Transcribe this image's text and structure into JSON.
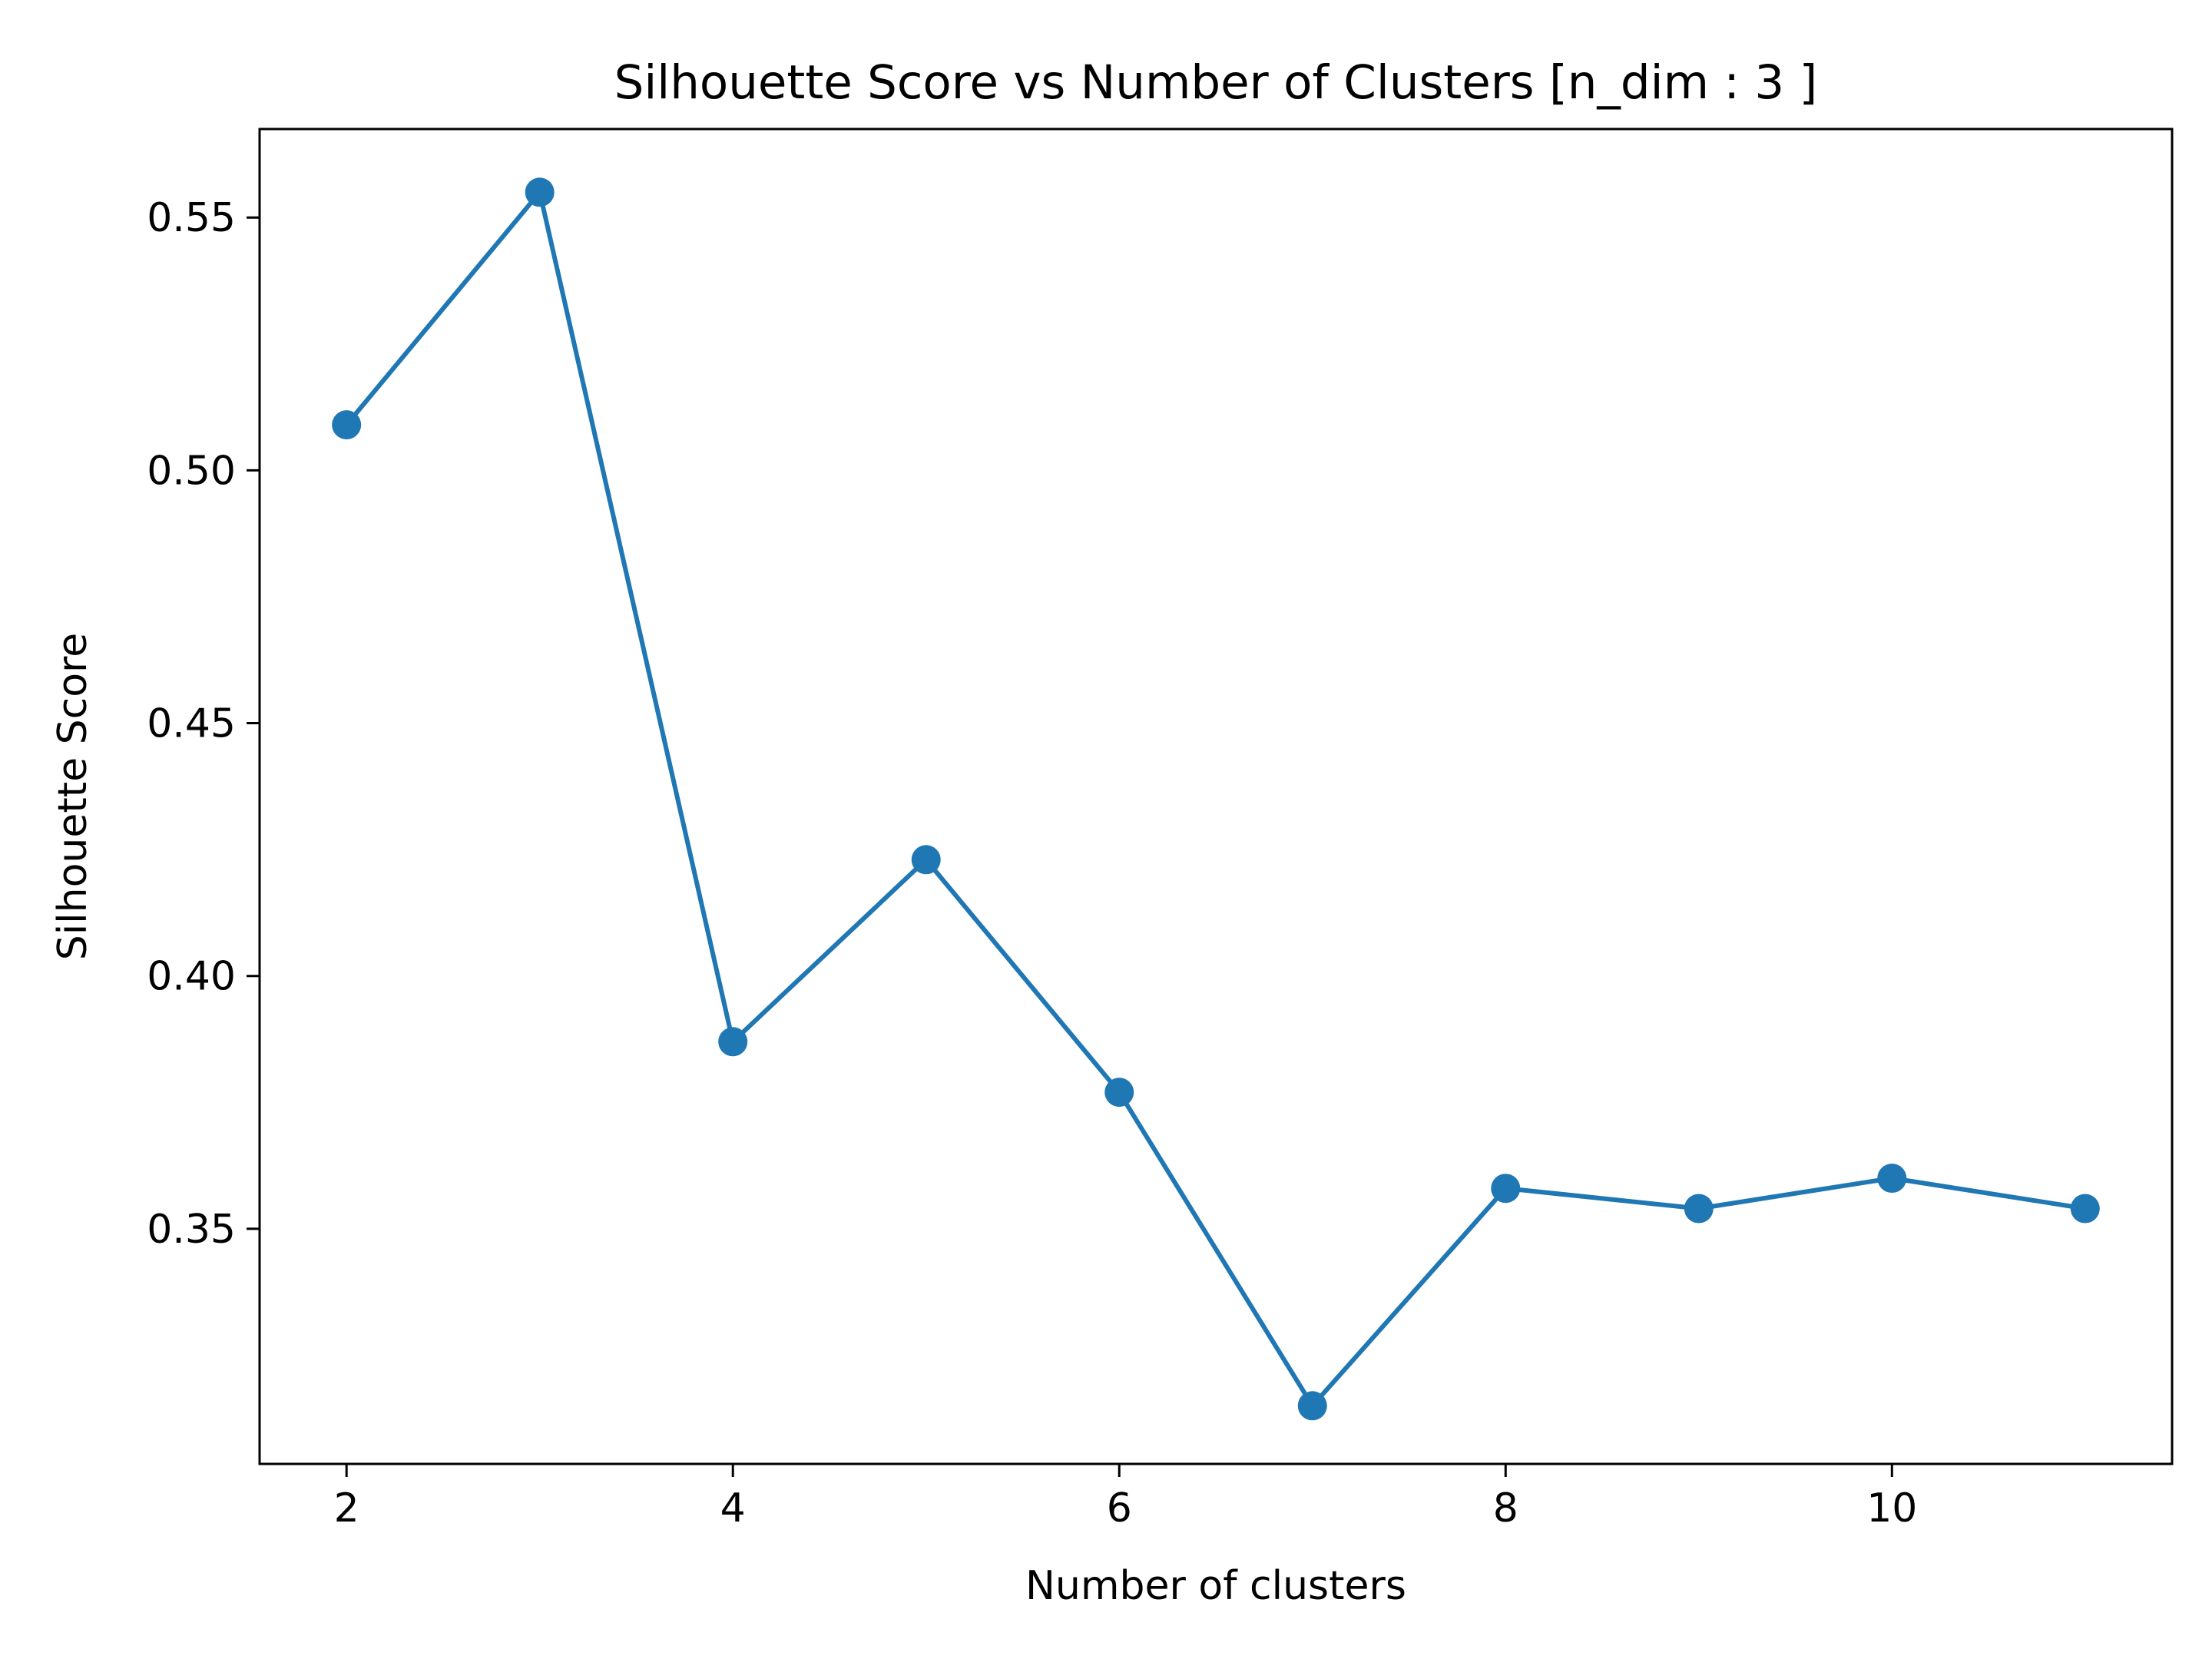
{
  "chart_data": {
    "type": "line",
    "title": "Silhouette Score vs Number of Clusters [n_dim : 3 ]",
    "xlabel": "Number of clusters",
    "ylabel": "Silhouette Score",
    "xlim": [
      1.55,
      11.45
    ],
    "ylim": [
      0.3035,
      0.5675
    ],
    "x_ticks": [
      2,
      4,
      6,
      8,
      10
    ],
    "y_ticks": [
      0.35,
      0.4,
      0.45,
      0.5,
      0.55
    ],
    "x_tick_labels": [
      "2",
      "4",
      "6",
      "8",
      "10"
    ],
    "y_tick_labels": [
      "0.35",
      "0.40",
      "0.45",
      "0.50",
      "0.55"
    ],
    "grid": false,
    "series": [
      {
        "color": "#1f77b4",
        "marker": "circle",
        "points": [
          {
            "x": 2,
            "y": 0.509
          },
          {
            "x": 3,
            "y": 0.555
          },
          {
            "x": 4,
            "y": 0.387
          },
          {
            "x": 5,
            "y": 0.423
          },
          {
            "x": 6,
            "y": 0.377
          },
          {
            "x": 7,
            "y": 0.315
          },
          {
            "x": 8,
            "y": 0.358
          },
          {
            "x": 9,
            "y": 0.354
          },
          {
            "x": 10,
            "y": 0.36
          },
          {
            "x": 11,
            "y": 0.354
          }
        ]
      }
    ]
  }
}
